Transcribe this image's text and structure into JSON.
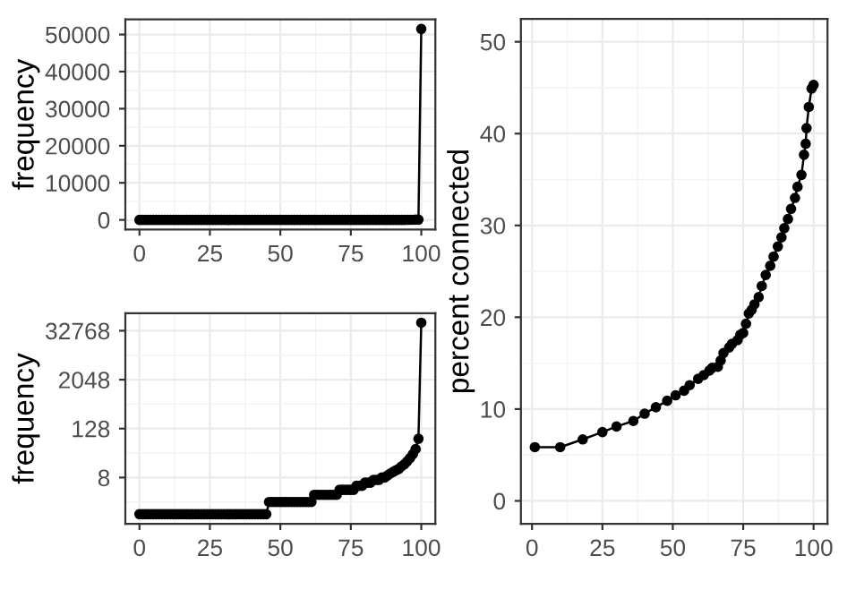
{
  "chart_data": [
    {
      "type": "line",
      "ylabel": "frequency",
      "marker": "circle",
      "line_style": "solid",
      "grid": true,
      "x": [
        0,
        1,
        2,
        3,
        4,
        5,
        6,
        7,
        8,
        9,
        10,
        11,
        12,
        13,
        14,
        15,
        16,
        17,
        18,
        19,
        20,
        21,
        22,
        23,
        24,
        25,
        26,
        27,
        28,
        29,
        30,
        31,
        32,
        33,
        34,
        35,
        36,
        37,
        38,
        39,
        40,
        41,
        42,
        43,
        44,
        45,
        46,
        47,
        48,
        49,
        50,
        51,
        52,
        53,
        54,
        55,
        56,
        57,
        58,
        59,
        60,
        61,
        62,
        63,
        64,
        65,
        66,
        67,
        68,
        69,
        70,
        71,
        72,
        73,
        74,
        75,
        76,
        77,
        78,
        79,
        80,
        81,
        82,
        83,
        84,
        85,
        86,
        87,
        88,
        89,
        90,
        91,
        92,
        93,
        94,
        95,
        96,
        97,
        98,
        99,
        100
      ],
      "series": [
        {
          "color": "#000000",
          "values": [
            1,
            1,
            1,
            1,
            1,
            1,
            1,
            1,
            1,
            1,
            1,
            1,
            1,
            1,
            1,
            1,
            1,
            1,
            1,
            1,
            1,
            1,
            1,
            1,
            1,
            1,
            1,
            1,
            1,
            1,
            1,
            1,
            1,
            1,
            1,
            1,
            1,
            1,
            1,
            1,
            1,
            1,
            1,
            1,
            1,
            1,
            2,
            2,
            2,
            2,
            2,
            2,
            2,
            2,
            2,
            2,
            2,
            2,
            2,
            2,
            2,
            2,
            3,
            3,
            3,
            3,
            3,
            3,
            3,
            3,
            3,
            4,
            4,
            4,
            4,
            4,
            4,
            5,
            5,
            5,
            6,
            6,
            6,
            7,
            7,
            7,
            8,
            8,
            9,
            10,
            11,
            12,
            13,
            15,
            17,
            20,
            24,
            30,
            40,
            72,
            51500
          ]
        }
      ],
      "xlim": [
        -5,
        105
      ],
      "ylim": [
        -2575,
        54075
      ],
      "xticks": [
        0,
        25,
        50,
        75,
        100
      ],
      "yticks": [
        0,
        10000,
        20000,
        30000,
        40000,
        50000
      ]
    },
    {
      "type": "line",
      "ylabel": "frequency",
      "marker": "circle",
      "line_style": "solid",
      "grid": true,
      "log": "y",
      "x": [
        0,
        1,
        2,
        3,
        4,
        5,
        6,
        7,
        8,
        9,
        10,
        11,
        12,
        13,
        14,
        15,
        16,
        17,
        18,
        19,
        20,
        21,
        22,
        23,
        24,
        25,
        26,
        27,
        28,
        29,
        30,
        31,
        32,
        33,
        34,
        35,
        36,
        37,
        38,
        39,
        40,
        41,
        42,
        43,
        44,
        45,
        46,
        47,
        48,
        49,
        50,
        51,
        52,
        53,
        54,
        55,
        56,
        57,
        58,
        59,
        60,
        61,
        62,
        63,
        64,
        65,
        66,
        67,
        68,
        69,
        70,
        71,
        72,
        73,
        74,
        75,
        76,
        77,
        78,
        79,
        80,
        81,
        82,
        83,
        84,
        85,
        86,
        87,
        88,
        89,
        90,
        91,
        92,
        93,
        94,
        95,
        96,
        97,
        98,
        99,
        100
      ],
      "series": [
        {
          "color": "#000000",
          "values": [
            1,
            1,
            1,
            1,
            1,
            1,
            1,
            1,
            1,
            1,
            1,
            1,
            1,
            1,
            1,
            1,
            1,
            1,
            1,
            1,
            1,
            1,
            1,
            1,
            1,
            1,
            1,
            1,
            1,
            1,
            1,
            1,
            1,
            1,
            1,
            1,
            1,
            1,
            1,
            1,
            1,
            1,
            1,
            1,
            1,
            1,
            2,
            2,
            2,
            2,
            2,
            2,
            2,
            2,
            2,
            2,
            2,
            2,
            2,
            2,
            2,
            2,
            3,
            3,
            3,
            3,
            3,
            3,
            3,
            3,
            3,
            4,
            4,
            4,
            4,
            4,
            4,
            5,
            5,
            5,
            6,
            6,
            6,
            7,
            7,
            7,
            8,
            8,
            9,
            10,
            11,
            12,
            13,
            15,
            17,
            20,
            24,
            30,
            40,
            72,
            51500
          ]
        }
      ],
      "xlim": [
        -5,
        105
      ],
      "ylim": [
        0.58,
        88300
      ],
      "xticks": [
        0,
        25,
        50,
        75,
        100
      ],
      "yticks": [
        8,
        128,
        2048,
        32768
      ]
    },
    {
      "type": "line",
      "ylabel": "percent connected",
      "marker": "circle",
      "line_style": "solid",
      "grid": true,
      "x": [
        1,
        10,
        18,
        25,
        30,
        36,
        40,
        44,
        48,
        51,
        54,
        56,
        59,
        61,
        63,
        64,
        66,
        67,
        68,
        70,
        71,
        73,
        74,
        75,
        76,
        77,
        78,
        79,
        80.5,
        81.6,
        83,
        84.6,
        85.8,
        87.3,
        88.6,
        89.6,
        90.9,
        92,
        93.4,
        94.3,
        95.7,
        96.6,
        97.2,
        97.5,
        98.3,
        99.3,
        100
      ],
      "series": [
        {
          "color": "#000000",
          "values": [
            5.85,
            5.85,
            6.7,
            7.5,
            8.1,
            8.7,
            9.5,
            10.2,
            10.9,
            11.5,
            12.0,
            12.6,
            13.3,
            13.7,
            14.2,
            14.5,
            14.6,
            15.3,
            16.1,
            16.7,
            17.1,
            17.5,
            18.1,
            18.3,
            19.3,
            20.4,
            20.8,
            21.4,
            22.2,
            23.4,
            24.6,
            25.6,
            26.6,
            27.7,
            28.7,
            29.7,
            30.7,
            31.8,
            33.0,
            34.2,
            35.5,
            37.7,
            38.9,
            40.6,
            42.9,
            44.9,
            45.3
          ]
        }
      ],
      "xlim": [
        -3.95,
        104.95
      ],
      "ylim": [
        -2.5,
        52.5
      ],
      "xticks": [
        0,
        25,
        50,
        75,
        100
      ],
      "yticks": [
        0,
        10,
        20,
        30,
        40,
        50
      ]
    }
  ]
}
